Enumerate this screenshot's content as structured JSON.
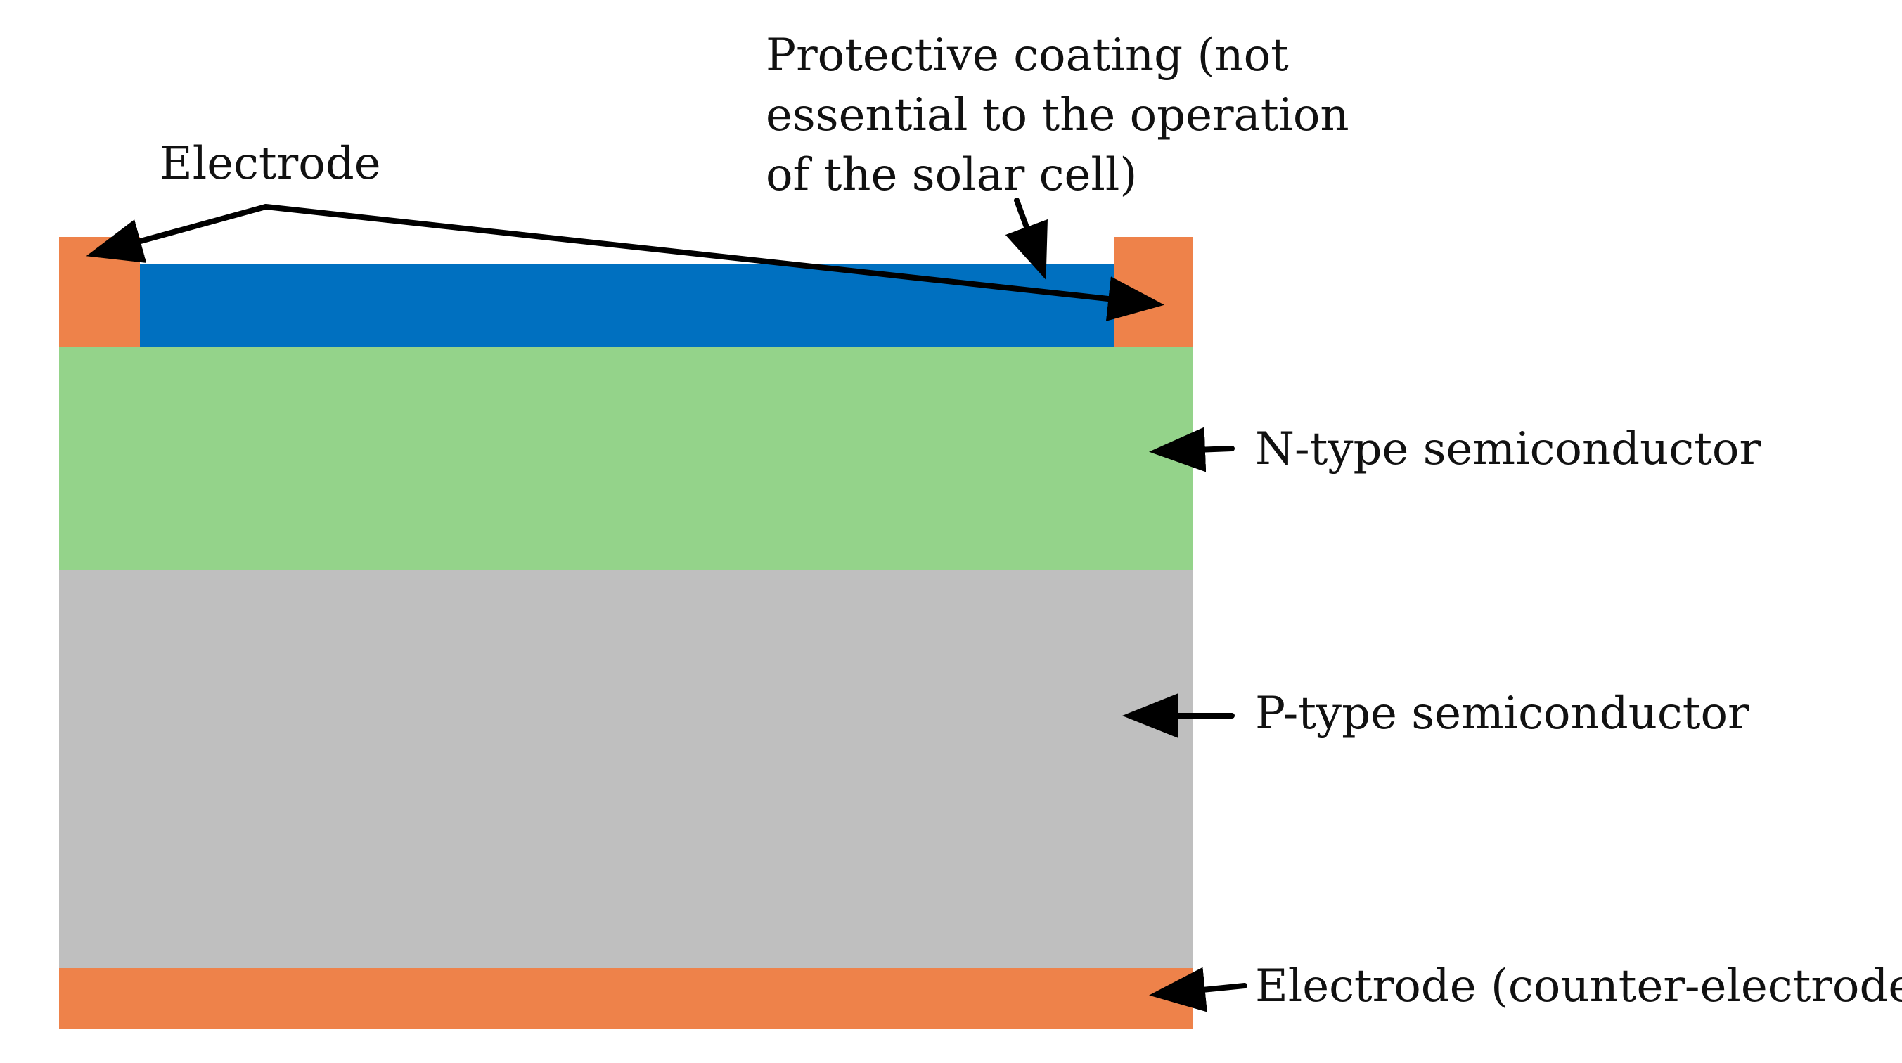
{
  "diagram": {
    "colors": {
      "electrode": "#EE824A",
      "coating": "#0070C0",
      "n_type": "#94D38A",
      "p_type": "#BFBFBF",
      "arrow": "#000000",
      "text": "#111111"
    },
    "labels": {
      "electrode_top": "Electrode",
      "coating_line1": "Protective coating (not",
      "coating_line2": "essential  to the operation",
      "coating_line3": "of the solar cell)",
      "n_type": "N-type semiconductor",
      "p_type": "P-type semiconductor",
      "counter_electrode": "Electrode (counter-electrode)"
    }
  }
}
